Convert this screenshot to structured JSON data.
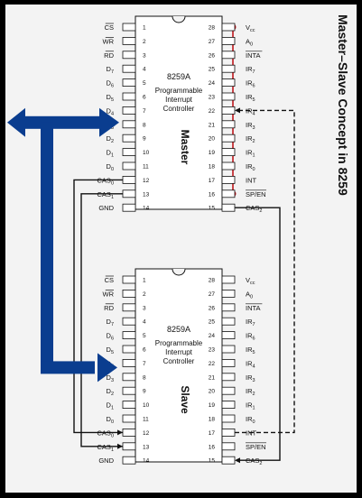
{
  "title": "Master–Slave Concept in 8259",
  "colors": {
    "bus": "#0a3d8f",
    "accent_red": "#c0181e",
    "wire": "#111111",
    "chip": "#ffffff",
    "panel": "#f3f3f3",
    "frame": "#000000"
  },
  "chips": [
    {
      "id": "master",
      "name": "8259A",
      "desc": [
        "Programmable",
        "Interrupt",
        "Controller"
      ],
      "role": "Master",
      "left_pins": [
        {
          "n": "1",
          "label": "CS",
          "over": true
        },
        {
          "n": "2",
          "label": "WR",
          "over": true
        },
        {
          "n": "3",
          "label": "RD",
          "over": true
        },
        {
          "n": "4",
          "label": "D7"
        },
        {
          "n": "5",
          "label": "D6"
        },
        {
          "n": "6",
          "label": "D5"
        },
        {
          "n": "7",
          "label": "D4"
        },
        {
          "n": "8",
          "label": "D3"
        },
        {
          "n": "9",
          "label": "D2"
        },
        {
          "n": "10",
          "label": "D1"
        },
        {
          "n": "11",
          "label": "D0"
        },
        {
          "n": "12",
          "label": "CAS0"
        },
        {
          "n": "13",
          "label": "CAS1"
        },
        {
          "n": "14",
          "label": "GND"
        }
      ],
      "right_pins": [
        {
          "n": "28",
          "label": "Vcc"
        },
        {
          "n": "27",
          "label": "A0"
        },
        {
          "n": "26",
          "label": "INTA",
          "over": true
        },
        {
          "n": "25",
          "label": "IR7"
        },
        {
          "n": "24",
          "label": "IR6"
        },
        {
          "n": "23",
          "label": "IR5"
        },
        {
          "n": "22",
          "label": "IR4"
        },
        {
          "n": "21",
          "label": "IR3"
        },
        {
          "n": "20",
          "label": "IR2"
        },
        {
          "n": "19",
          "label": "IR1"
        },
        {
          "n": "18",
          "label": "IR0"
        },
        {
          "n": "17",
          "label": "INT"
        },
        {
          "n": "16",
          "label": "SP/EN",
          "over": true
        },
        {
          "n": "15",
          "label": "CAS2"
        }
      ]
    },
    {
      "id": "slave",
      "name": "8259A",
      "desc": [
        "Programmable",
        "Interrupt",
        "Controller"
      ],
      "role": "Slave",
      "left_pins": [
        {
          "n": "1",
          "label": "CS",
          "over": true
        },
        {
          "n": "2",
          "label": "WR",
          "over": true
        },
        {
          "n": "3",
          "label": "RD",
          "over": true
        },
        {
          "n": "4",
          "label": "D7"
        },
        {
          "n": "5",
          "label": "D6"
        },
        {
          "n": "6",
          "label": "D5"
        },
        {
          "n": "7",
          "label": "D4"
        },
        {
          "n": "8",
          "label": "D3"
        },
        {
          "n": "9",
          "label": "D2"
        },
        {
          "n": "10",
          "label": "D1"
        },
        {
          "n": "11",
          "label": "D0"
        },
        {
          "n": "12",
          "label": "CAS0"
        },
        {
          "n": "13",
          "label": "CAS1"
        },
        {
          "n": "14",
          "label": "GND"
        }
      ],
      "right_pins": [
        {
          "n": "28",
          "label": "Vcc"
        },
        {
          "n": "27",
          "label": "A0"
        },
        {
          "n": "26",
          "label": "INTA",
          "over": true
        },
        {
          "n": "25",
          "label": "IR7"
        },
        {
          "n": "24",
          "label": "IR6"
        },
        {
          "n": "23",
          "label": "IR5"
        },
        {
          "n": "22",
          "label": "IR4"
        },
        {
          "n": "21",
          "label": "IR3"
        },
        {
          "n": "20",
          "label": "IR2"
        },
        {
          "n": "19",
          "label": "IR1"
        },
        {
          "n": "18",
          "label": "IR0"
        },
        {
          "n": "17",
          "label": "INT"
        },
        {
          "n": "16",
          "label": "SP/EN",
          "over": true
        },
        {
          "n": "15",
          "label": "CAS2"
        }
      ]
    }
  ]
}
